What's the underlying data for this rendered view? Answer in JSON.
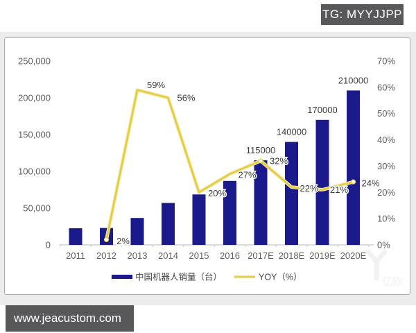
{
  "badges": {
    "tg": "TG: MYYJJPP",
    "website": "www.jeacustom.com",
    "badge_bg": "#58585a",
    "badge_text_color": "#ffffff"
  },
  "watermark": {
    "text": "亿欧"
  },
  "chart_data": {
    "type": "combo-bar-line",
    "categories": [
      "2011",
      "2012",
      "2013",
      "2014",
      "2015",
      "2016",
      "2017E",
      "2018E",
      "2019E",
      "2020E"
    ],
    "series": [
      {
        "name": "中国机器人销量（台）",
        "type": "bar",
        "axis": "left",
        "color": "#1a1a8c",
        "values": [
          22600,
          23000,
          36600,
          57000,
          68600,
          87000,
          115000,
          140000,
          170000,
          210000
        ],
        "data_labels": [
          "",
          "",
          "",
          "",
          "",
          "",
          "115000",
          "140000",
          "170000",
          "210000"
        ]
      },
      {
        "name": "YOY（%）",
        "type": "line",
        "axis": "right",
        "color": "#e4cb45",
        "color_light": "#f3e9a0",
        "values": [
          null,
          2,
          59,
          56,
          20,
          27,
          32,
          22,
          21,
          24
        ],
        "data_labels": [
          "",
          "2%",
          "59%",
          "56%",
          "20%",
          "27%",
          "32%",
          "22%",
          "21%",
          "24%"
        ]
      }
    ],
    "left_axis": {
      "min": 0,
      "max": 250000,
      "tick_step": 50000,
      "tick_labels": [
        "0",
        "50,000",
        "100,000",
        "150,000",
        "200,000",
        "250,000"
      ]
    },
    "right_axis": {
      "min": 0,
      "max": 70,
      "tick_step": 10,
      "tick_labels": [
        "0%",
        "10%",
        "20%",
        "30%",
        "40%",
        "50%",
        "60%",
        "70%"
      ]
    },
    "gridlines": false,
    "legend_position": "bottom",
    "axis_text_color": "#5d5d5d",
    "label_text_color": "#3c3c3c"
  }
}
